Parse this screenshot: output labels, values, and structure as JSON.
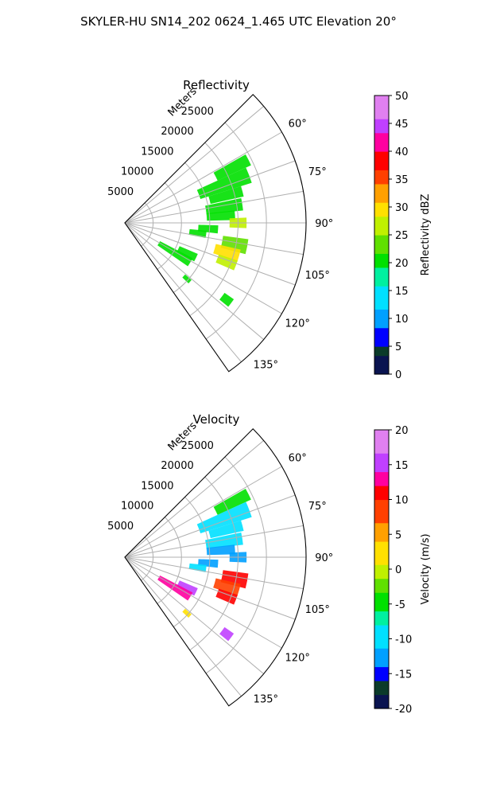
{
  "figure": {
    "suptitle": "SKYLER-HU  SN14_202  0624_1.465 UTC Elevation 20°"
  },
  "chart_data": [
    {
      "type": "heatmap",
      "projection": "polar-sector",
      "title": "Reflectivity",
      "range_label": "Meters",
      "range_max": 32000,
      "range_ticks": [
        5000,
        10000,
        15000,
        20000,
        25000
      ],
      "azimuth_min_deg": 45,
      "azimuth_max_deg": 145,
      "azimuth_ticks_deg": [
        60,
        75,
        90,
        105,
        120,
        135
      ],
      "azimuth_tick_labels": [
        "60°",
        "75°",
        "90°",
        "105°",
        "120°",
        "135°"
      ],
      "grid": true,
      "colorbar": {
        "label": "Reflectivity dBZ",
        "vmin": 0,
        "vmax": 50,
        "ticks": [
          0,
          5,
          10,
          15,
          20,
          25,
          30,
          35,
          40,
          45,
          50
        ],
        "stops": [
          {
            "v": 0,
            "c": "#0a1450"
          },
          {
            "v": 3,
            "c": "#0b3b2a"
          },
          {
            "v": 5,
            "c": "#0000ff"
          },
          {
            "v": 8,
            "c": "#00a0ff"
          },
          {
            "v": 12,
            "c": "#00e0ff"
          },
          {
            "v": 16,
            "c": "#00f0a0"
          },
          {
            "v": 19,
            "c": "#00e000"
          },
          {
            "v": 22,
            "c": "#60e000"
          },
          {
            "v": 25,
            "c": "#c0f000"
          },
          {
            "v": 28,
            "c": "#ffe000"
          },
          {
            "v": 31,
            "c": "#ffa000"
          },
          {
            "v": 34,
            "c": "#ff4000"
          },
          {
            "v": 37,
            "c": "#ff0000"
          },
          {
            "v": 40,
            "c": "#ff00a0"
          },
          {
            "v": 43,
            "c": "#c040ff"
          },
          {
            "v": 46,
            "c": "#e080f0"
          },
          {
            "v": 50,
            "c": "#ffe6ff"
          }
        ]
      },
      "cells": [
        {
          "az": 63,
          "r0": 18000,
          "r1": 24500,
          "w": 5,
          "value": 19
        },
        {
          "az": 69,
          "r0": 14000,
          "r1": 23500,
          "w": 7,
          "value": 20
        },
        {
          "az": 75,
          "r0": 15500,
          "r1": 21500,
          "w": 5,
          "value": 19
        },
        {
          "az": 81,
          "r0": 14500,
          "r1": 21000,
          "w": 6,
          "value": 20
        },
        {
          "az": 86,
          "r0": 14500,
          "r1": 19500,
          "w": 5,
          "value": 21
        },
        {
          "az": 90,
          "r0": 18500,
          "r1": 21500,
          "w": 5,
          "value": 27
        },
        {
          "az": 94,
          "r0": 13000,
          "r1": 16500,
          "w": 5,
          "value": 21
        },
        {
          "az": 98,
          "r0": 11500,
          "r1": 14500,
          "w": 5,
          "value": 20
        },
        {
          "az": 101,
          "r0": 17500,
          "r1": 22000,
          "w": 7,
          "value": 23
        },
        {
          "az": 106,
          "r0": 16500,
          "r1": 21000,
          "w": 6,
          "value": 29
        },
        {
          "az": 111,
          "r0": 17500,
          "r1": 21000,
          "w": 5,
          "value": 25
        },
        {
          "az": 116,
          "r0": 10500,
          "r1": 14000,
          "w": 6,
          "value": 20
        },
        {
          "az": 121,
          "r0": 7000,
          "r1": 13500,
          "w": 7,
          "value": 21
        },
        {
          "az": 127,
          "r0": 21500,
          "r1": 23500,
          "w": 4,
          "value": 20
        },
        {
          "az": 132,
          "r0": 14000,
          "r1": 15500,
          "w": 3,
          "value": 19
        }
      ]
    },
    {
      "type": "heatmap",
      "projection": "polar-sector",
      "title": "Velocity",
      "range_label": "Meters",
      "range_max": 32000,
      "range_ticks": [
        5000,
        10000,
        15000,
        20000,
        25000
      ],
      "azimuth_min_deg": 45,
      "azimuth_max_deg": 145,
      "azimuth_ticks_deg": [
        60,
        75,
        90,
        105,
        120,
        135
      ],
      "azimuth_tick_labels": [
        "60°",
        "75°",
        "90°",
        "105°",
        "120°",
        "135°"
      ],
      "grid": true,
      "colorbar": {
        "label": "Velocity (m/s)",
        "vmin": -20,
        "vmax": 20,
        "ticks": [
          -20,
          -15,
          -10,
          -5,
          0,
          5,
          10,
          15,
          20
        ],
        "stops": [
          {
            "v": -20,
            "c": "#0a1450"
          },
          {
            "v": -18,
            "c": "#0b3b2a"
          },
          {
            "v": -16,
            "c": "#0000ff"
          },
          {
            "v": -14,
            "c": "#00a0ff"
          },
          {
            "v": -11,
            "c": "#00e0ff"
          },
          {
            "v": -8,
            "c": "#00f0a0"
          },
          {
            "v": -6,
            "c": "#00e000"
          },
          {
            "v": -3,
            "c": "#60e000"
          },
          {
            "v": -1,
            "c": "#c0f000"
          },
          {
            "v": 1,
            "c": "#ffe000"
          },
          {
            "v": 4,
            "c": "#ffa000"
          },
          {
            "v": 7,
            "c": "#ff4000"
          },
          {
            "v": 10,
            "c": "#ff0000"
          },
          {
            "v": 12,
            "c": "#ff00a0"
          },
          {
            "v": 14,
            "c": "#c040ff"
          },
          {
            "v": 17,
            "c": "#e080f0"
          },
          {
            "v": 20,
            "c": "#ffe6ff"
          }
        ]
      },
      "cells": [
        {
          "az": 63,
          "r0": 18000,
          "r1": 24500,
          "w": 5,
          "value": -6
        },
        {
          "az": 69,
          "r0": 14000,
          "r1": 23500,
          "w": 7,
          "value": -9
        },
        {
          "az": 75,
          "r0": 15500,
          "r1": 21500,
          "w": 5,
          "value": -10
        },
        {
          "az": 81,
          "r0": 14500,
          "r1": 21000,
          "w": 6,
          "value": -11
        },
        {
          "az": 86,
          "r0": 14500,
          "r1": 19500,
          "w": 5,
          "value": -12
        },
        {
          "az": 90,
          "r0": 18500,
          "r1": 21500,
          "w": 5,
          "value": -13
        },
        {
          "az": 94,
          "r0": 13000,
          "r1": 16500,
          "w": 5,
          "value": -12
        },
        {
          "az": 98,
          "r0": 11500,
          "r1": 14500,
          "w": 5,
          "value": -11
        },
        {
          "az": 101,
          "r0": 17500,
          "r1": 22000,
          "w": 7,
          "value": 10
        },
        {
          "az": 106,
          "r0": 16500,
          "r1": 21000,
          "w": 6,
          "value": 8
        },
        {
          "az": 111,
          "r0": 17500,
          "r1": 21000,
          "w": 5,
          "value": 11
        },
        {
          "az": 116,
          "r0": 10500,
          "r1": 14000,
          "w": 6,
          "value": 15
        },
        {
          "az": 121,
          "r0": 7000,
          "r1": 13500,
          "w": 7,
          "value": 13
        },
        {
          "az": 127,
          "r0": 21500,
          "r1": 23500,
          "w": 4,
          "value": 14
        },
        {
          "az": 132,
          "r0": 14000,
          "r1": 15500,
          "w": 3,
          "value": 1
        }
      ]
    }
  ]
}
